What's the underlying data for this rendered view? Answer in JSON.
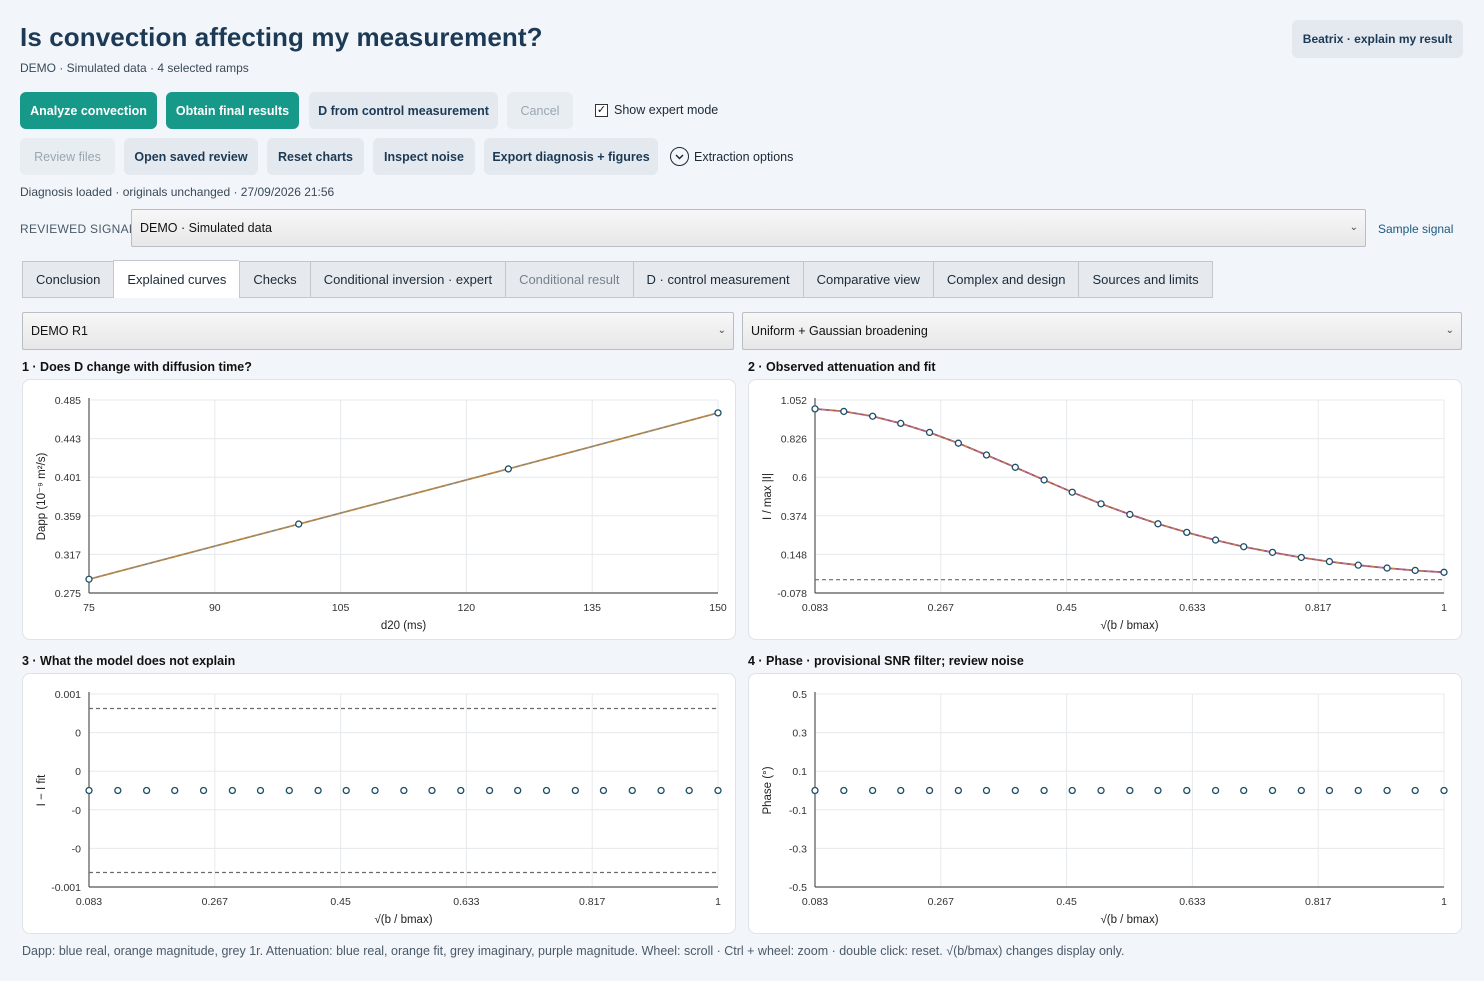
{
  "header": {
    "title": "Is convection affecting my measurement?",
    "subtitle": "DEMO · Simulated data · 4 selected ramps",
    "explain_button": "Beatrix · explain my result"
  },
  "toolbar": {
    "analyze": "Analyze convection",
    "obtain": "Obtain final results",
    "d_control": "D from control measurement",
    "cancel": "Cancel",
    "expert_mode": "Show expert mode",
    "expert_mode_checked": true,
    "review_files": "Review files",
    "open_saved": "Open saved review",
    "reset_charts": "Reset charts",
    "inspect_noise": "Inspect noise",
    "export": "Export diagnosis + figures",
    "extraction": "Extraction options"
  },
  "status": "Diagnosis loaded · originals unchanged · 27/09/2026 21:56",
  "signal": {
    "label": "REVIEWED SIGNAL",
    "selected": "DEMO · Simulated data",
    "sample_link": "Sample signal"
  },
  "tabs": [
    {
      "label": "Conclusion"
    },
    {
      "label": "Explained curves"
    },
    {
      "label": "Checks"
    },
    {
      "label": "Conditional inversion · expert"
    },
    {
      "label": "Conditional result"
    },
    {
      "label": "D · control measurement"
    },
    {
      "label": "Comparative view"
    },
    {
      "label": "Complex and design"
    },
    {
      "label": "Sources and limits"
    }
  ],
  "selectors": {
    "ramp": "DEMO R1",
    "model": "Uniform + Gaussian broadening"
  },
  "colors": {
    "primary": "#17998a",
    "secondary": "#e3e9ef",
    "marker": "#1e4e66",
    "fit_orange": "#c88a3e",
    "magnitude_purple": "#a0507d",
    "grey_ref": "#6b6b6b"
  },
  "chart_data": [
    {
      "title": "1 · Does D change with diffusion time?",
      "type": "line",
      "xlabel": "d20 (ms)",
      "ylabel": "Dapp (10⁻⁹ m²/s)",
      "xlim": [
        75,
        150
      ],
      "ylim": [
        0.275,
        0.485
      ],
      "xticks": [
        "75",
        "90",
        "105",
        "120",
        "135",
        "150"
      ],
      "yticks": [
        "0.275",
        "0.317",
        "0.359",
        "0.401",
        "0.443",
        "0.485"
      ],
      "grid": true,
      "series": [
        {
          "x": [
            75,
            100,
            125,
            150
          ],
          "y": [
            0.29,
            0.35,
            0.41,
            0.471
          ]
        }
      ]
    },
    {
      "title": "2 · Observed attenuation and fit",
      "type": "line",
      "xlabel": "√(b / bmax)",
      "ylabel": "I / max |I|",
      "xlim": [
        0.083,
        1
      ],
      "ylim": [
        -0.078,
        1.052
      ],
      "xticks": [
        "0.083",
        "0.267",
        "0.45",
        "0.633",
        "0.817",
        "1"
      ],
      "yticks": [
        "-0.078",
        "0.148",
        "0.374",
        "0.6",
        "0.826",
        "1.052"
      ],
      "grid": true,
      "reference_line_y": 0,
      "series": [
        {
          "x": [
            0.083,
            0.125,
            0.167,
            0.208,
            0.25,
            0.292,
            0.333,
            0.375,
            0.417,
            0.458,
            0.5,
            0.542,
            0.583,
            0.625,
            0.667,
            0.708,
            0.75,
            0.792,
            0.833,
            0.875,
            0.917,
            0.958,
            1.0
          ],
          "y": [
            1.0,
            0.985,
            0.957,
            0.915,
            0.862,
            0.799,
            0.73,
            0.658,
            0.584,
            0.512,
            0.444,
            0.382,
            0.327,
            0.277,
            0.232,
            0.193,
            0.16,
            0.13,
            0.106,
            0.085,
            0.068,
            0.054,
            0.043
          ]
        }
      ]
    },
    {
      "title": "3 · What the model does not explain",
      "type": "scatter",
      "xlabel": "√(b / bmax)",
      "ylabel": "I − I fit",
      "xlim": [
        0.083,
        1
      ],
      "ylim": [
        -0.001,
        0.001
      ],
      "xticks": [
        "0.083",
        "0.267",
        "0.45",
        "0.633",
        "0.817",
        "1"
      ],
      "yticks": [
        "-0.001",
        "-0",
        "-0",
        "0",
        "0",
        "0.001"
      ],
      "grid": true,
      "band_y": [
        0.00085,
        -0.00085
      ],
      "series": [
        {
          "x": [
            0.083,
            0.125,
            0.167,
            0.208,
            0.25,
            0.292,
            0.333,
            0.375,
            0.417,
            0.458,
            0.5,
            0.542,
            0.583,
            0.625,
            0.667,
            0.708,
            0.75,
            0.792,
            0.833,
            0.875,
            0.917,
            0.958,
            1.0
          ],
          "y": [
            0,
            0,
            0,
            0,
            0,
            0,
            0,
            0,
            0,
            0,
            0,
            0,
            0,
            0,
            0,
            0,
            0,
            0,
            0,
            0,
            0,
            0,
            0
          ]
        }
      ]
    },
    {
      "title": "4 · Phase · provisional SNR filter; review noise",
      "type": "scatter",
      "xlabel": "√(b / bmax)",
      "ylabel": "Phase (°)",
      "xlim": [
        0.083,
        1
      ],
      "ylim": [
        -0.5,
        0.5
      ],
      "xticks": [
        "0.083",
        "0.267",
        "0.45",
        "0.633",
        "0.817",
        "1"
      ],
      "yticks": [
        "-0.5",
        "-0.3",
        "-0.1",
        "0.1",
        "0.3",
        "0.5"
      ],
      "grid": true,
      "series": [
        {
          "x": [
            0.083,
            0.125,
            0.167,
            0.208,
            0.25,
            0.292,
            0.333,
            0.375,
            0.417,
            0.458,
            0.5,
            0.542,
            0.583,
            0.625,
            0.667,
            0.708,
            0.75,
            0.792,
            0.833,
            0.875,
            0.917,
            0.958,
            1.0
          ],
          "y": [
            0,
            0,
            0,
            0,
            0,
            0,
            0,
            0,
            0,
            0,
            0,
            0,
            0,
            0,
            0,
            0,
            0,
            0,
            0,
            0,
            0,
            0,
            0
          ]
        }
      ]
    }
  ],
  "footer_note": "Dapp: blue real, orange magnitude, grey 1r. Attenuation: blue real, orange fit, grey imaginary, purple magnitude. Wheel: scroll · Ctrl + wheel: zoom · double click: reset. √(b/bmax) changes display only."
}
